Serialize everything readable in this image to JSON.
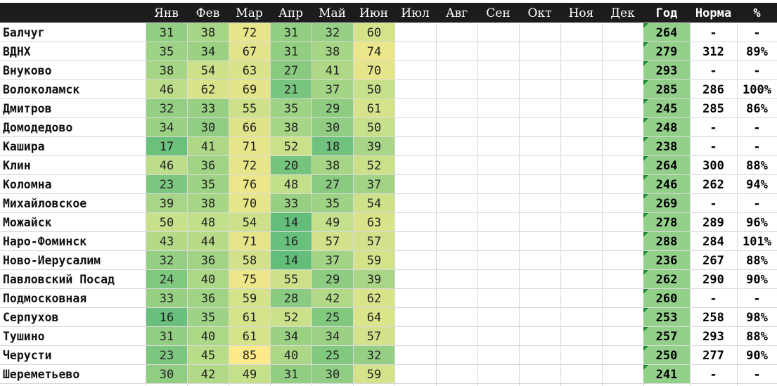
{
  "chart_data": {
    "type": "table",
    "columns": [
      "Янв",
      "Фев",
      "Мар",
      "Апр",
      "Май",
      "Июн",
      "Июл",
      "Авг",
      "Сен",
      "Окт",
      "Ноя",
      "Дек",
      "Год",
      "Норма",
      "%"
    ],
    "rows": [
      {
        "name": "Балчуг",
        "values": [
          "31",
          "38",
          "72",
          "31",
          "32",
          "60"
        ],
        "year": "264",
        "norm": "-",
        "pct": "-"
      },
      {
        "name": "ВДНХ",
        "values": [
          "35",
          "34",
          "67",
          "31",
          "38",
          "74"
        ],
        "year": "279",
        "norm": "312",
        "pct": "89%"
      },
      {
        "name": "Внуково",
        "values": [
          "38",
          "54",
          "63",
          "27",
          "41",
          "70"
        ],
        "year": "293",
        "norm": "-",
        "pct": "-"
      },
      {
        "name": "Волоколамск",
        "values": [
          "46",
          "62",
          "69",
          "21",
          "37",
          "50"
        ],
        "year": "285",
        "norm": "286",
        "pct": "100%"
      },
      {
        "name": "Дмитров",
        "values": [
          "32",
          "33",
          "55",
          "35",
          "29",
          "61"
        ],
        "year": "245",
        "norm": "285",
        "pct": "86%"
      },
      {
        "name": "Домодедово",
        "values": [
          "34",
          "30",
          "66",
          "38",
          "30",
          "50"
        ],
        "year": "248",
        "norm": "-",
        "pct": "-"
      },
      {
        "name": "Кашира",
        "values": [
          "17",
          "41",
          "71",
          "52",
          "18",
          "39"
        ],
        "year": "238",
        "norm": "-",
        "pct": "-"
      },
      {
        "name": "Клин",
        "values": [
          "46",
          "36",
          "72",
          "20",
          "38",
          "52"
        ],
        "year": "264",
        "norm": "300",
        "pct": "88%"
      },
      {
        "name": "Коломна",
        "values": [
          "23",
          "35",
          "76",
          "48",
          "27",
          "37"
        ],
        "year": "246",
        "norm": "262",
        "pct": "94%"
      },
      {
        "name": "Михайловское",
        "values": [
          "39",
          "38",
          "70",
          "33",
          "35",
          "54"
        ],
        "year": "269",
        "norm": "-",
        "pct": "-"
      },
      {
        "name": "Можайск",
        "values": [
          "50",
          "48",
          "54",
          "14",
          "49",
          "63"
        ],
        "year": "278",
        "norm": "289",
        "pct": "96%"
      },
      {
        "name": "Наро-Фоминск",
        "values": [
          "43",
          "44",
          "71",
          "16",
          "57",
          "57"
        ],
        "year": "288",
        "norm": "284",
        "pct": "101%"
      },
      {
        "name": "Ново-Иерусалим",
        "values": [
          "32",
          "36",
          "58",
          "14",
          "37",
          "59"
        ],
        "year": "236",
        "norm": "267",
        "pct": "88%"
      },
      {
        "name": "Павловский Посад",
        "values": [
          "24",
          "40",
          "75",
          "55",
          "29",
          "39"
        ],
        "year": "262",
        "norm": "290",
        "pct": "90%"
      },
      {
        "name": "Подмосковная",
        "values": [
          "33",
          "36",
          "59",
          "28",
          "42",
          "62"
        ],
        "year": "260",
        "norm": "-",
        "pct": "-"
      },
      {
        "name": "Серпухов",
        "values": [
          "16",
          "35",
          "61",
          "52",
          "25",
          "64"
        ],
        "year": "253",
        "norm": "258",
        "pct": "98%"
      },
      {
        "name": "Тушино",
        "values": [
          "31",
          "40",
          "61",
          "34",
          "34",
          "57"
        ],
        "year": "257",
        "norm": "293",
        "pct": "88%"
      },
      {
        "name": "Черусти",
        "values": [
          "23",
          "45",
          "85",
          "40",
          "25",
          "32"
        ],
        "year": "250",
        "norm": "277",
        "pct": "90%"
      },
      {
        "name": "Шереметьево",
        "values": [
          "30",
          "42",
          "49",
          "31",
          "30",
          "59"
        ],
        "year": "241",
        "norm": "-",
        "pct": "-"
      }
    ],
    "color_scale": {
      "min_color": "#63be7b",
      "mid_color": "#c6e08a",
      "max_color": "#fce98a",
      "year_color": "#92d08a",
      "header_bg": "#1c1c1c"
    }
  }
}
